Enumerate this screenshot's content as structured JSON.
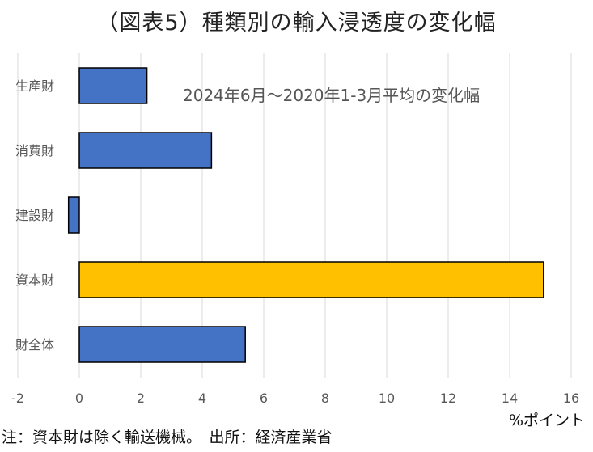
{
  "chart_data": {
    "type": "bar",
    "orientation": "horizontal",
    "title": "（図表5）種類別の輸入浸透度の変化幅",
    "annotation": "2024年6月～2020年1-3月平均の変化幅",
    "categories": [
      "生産財",
      "消費財",
      "建設財",
      "資本財",
      "財全体"
    ],
    "values": [
      2.2,
      4.3,
      -0.35,
      15.1,
      5.4
    ],
    "bar_colors": [
      "#4472C4",
      "#4472C4",
      "#4472C4",
      "#FFC000",
      "#4472C4"
    ],
    "xlim": [
      -2,
      16
    ],
    "xticks": [
      "-2",
      "0",
      "2",
      "4",
      "6",
      "8",
      "10",
      "12",
      "14",
      "16"
    ],
    "xlabel": "%ポイント",
    "ylabel": "",
    "grid": "vertical",
    "legend": "none",
    "footnote": "注：資本財は除く輸送機械。　出所：経済産業省"
  }
}
